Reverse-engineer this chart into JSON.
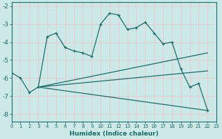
{
  "xlabel": "Humidex (Indice chaleur)",
  "bg_color": "#cce9e8",
  "grid_color": "#b0d8d6",
  "line_color": "#1a6b6b",
  "xlim": [
    0,
    23
  ],
  "ylim": [
    -8.4,
    -1.8
  ],
  "yticks": [
    -8,
    -7,
    -6,
    -5,
    -4,
    -3,
    -2
  ],
  "xticks": [
    0,
    1,
    2,
    3,
    4,
    5,
    6,
    7,
    8,
    9,
    10,
    11,
    12,
    13,
    14,
    15,
    16,
    17,
    18,
    19,
    20,
    21,
    22,
    23
  ],
  "line1_x": [
    0,
    1,
    2,
    3,
    4,
    5,
    6,
    7,
    8,
    9,
    10,
    11,
    12,
    13,
    14,
    15,
    16,
    17,
    18,
    19,
    20,
    21,
    22
  ],
  "line1_y": [
    -5.7,
    -6.0,
    -6.8,
    -6.5,
    -3.7,
    -3.5,
    -4.3,
    -4.5,
    -4.6,
    -4.8,
    -3.0,
    -2.4,
    -2.5,
    -3.3,
    -3.2,
    -2.9,
    -3.5,
    -4.1,
    -4.0,
    -5.5,
    -6.5,
    -6.3,
    -7.8
  ],
  "line2_x": [
    3,
    22
  ],
  "line2_y": [
    -6.5,
    -4.6
  ],
  "line3_x": [
    3,
    22
  ],
  "line3_y": [
    -6.5,
    -5.6
  ],
  "line4_x": [
    3,
    22
  ],
  "line4_y": [
    -6.5,
    -7.8
  ]
}
